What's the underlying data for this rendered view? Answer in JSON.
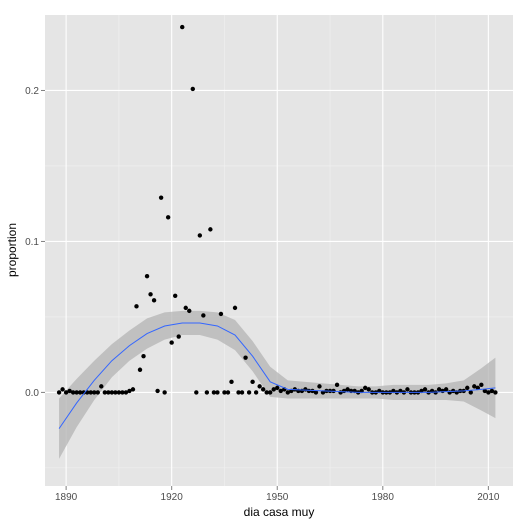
{
  "chart_data": {
    "type": "scatter",
    "title": "",
    "xlabel": "dia casa muy",
    "ylabel": "proportion",
    "xlim": [
      1884,
      2017
    ],
    "ylim": [
      -0.062,
      0.25
    ],
    "x_ticks": [
      1890,
      1920,
      1950,
      1980,
      2010
    ],
    "y_ticks": [
      0.0,
      0.1,
      0.2
    ],
    "y_tick_labels": [
      "0.0",
      "0.1",
      "0.2"
    ],
    "grid": true,
    "legend": "none",
    "colors": {
      "panel": "#e5e5e5",
      "grid_major": "#ffffff",
      "grid_minor": "#f2f2f2",
      "points": "#000000",
      "smooth_line": "#3366ff",
      "ribbon": "#b3b3b3",
      "tick_label": "#4d4d4d"
    },
    "series": [
      {
        "type": "points",
        "x": [
          1888,
          1889,
          1890,
          1891,
          1892,
          1893,
          1894,
          1895,
          1896,
          1897,
          1898,
          1899,
          1900,
          1901,
          1902,
          1903,
          1904,
          1905,
          1906,
          1907,
          1908,
          1909,
          1910,
          1911,
          1912,
          1913,
          1914,
          1915,
          1916,
          1917,
          1918,
          1919,
          1920,
          1921,
          1922,
          1923,
          1924,
          1925,
          1926,
          1927,
          1928,
          1929,
          1930,
          1931,
          1932,
          1933,
          1934,
          1935,
          1936,
          1937,
          1938,
          1939,
          1940,
          1941,
          1942,
          1943,
          1944,
          1945,
          1946,
          1947,
          1948,
          1949,
          1950,
          1951,
          1952,
          1953,
          1954,
          1955,
          1956,
          1957,
          1958,
          1959,
          1960,
          1961,
          1962,
          1963,
          1964,
          1965,
          1966,
          1967,
          1968,
          1969,
          1970,
          1971,
          1972,
          1973,
          1974,
          1975,
          1976,
          1977,
          1978,
          1979,
          1980,
          1981,
          1982,
          1983,
          1984,
          1985,
          1986,
          1987,
          1988,
          1989,
          1990,
          1991,
          1992,
          1993,
          1994,
          1995,
          1996,
          1997,
          1998,
          1999,
          2000,
          2001,
          2002,
          2003,
          2004,
          2005,
          2006,
          2007,
          2008,
          2009,
          2010,
          2011,
          2012
        ],
        "y": [
          0,
          0.002,
          0,
          0.001,
          0,
          0,
          0,
          0,
          0,
          0,
          0,
          0,
          0.004,
          0,
          0,
          0,
          0,
          0,
          0,
          0,
          0.001,
          0.002,
          0.057,
          0.015,
          0.024,
          0.077,
          0.065,
          0.061,
          0.001,
          0.129,
          0,
          0.116,
          0.033,
          0.064,
          0.037,
          0.242,
          0.056,
          0.054,
          0.201,
          0,
          0.104,
          0.051,
          0,
          0.108,
          0,
          0,
          0.052,
          0,
          0,
          0.007,
          0.056,
          0,
          0,
          0.023,
          0,
          0.007,
          0,
          0.004,
          0.002,
          0,
          0,
          0.002,
          0.003,
          0.001,
          0.002,
          0,
          0.001,
          0.002,
          0.001,
          0.001,
          0.002,
          0.001,
          0.001,
          0,
          0.004,
          0,
          0.001,
          0.001,
          0.001,
          0.005,
          0,
          0.001,
          0.002,
          0.001,
          0.001,
          0,
          0.001,
          0.003,
          0.002,
          0,
          0,
          0.001,
          0,
          0,
          0,
          0.001,
          0,
          0.001,
          0,
          0.002,
          0,
          0,
          0,
          0.001,
          0.002,
          0,
          0.001,
          0,
          0.002,
          0.001,
          0.002,
          0,
          0.001,
          0,
          0.001,
          0.001,
          0.003,
          0,
          0.004,
          0.003,
          0.005,
          0.001,
          0,
          0.001,
          0
        ]
      },
      {
        "type": "smooth",
        "x": [
          1888,
          1893,
          1898,
          1903,
          1908,
          1913,
          1918,
          1923,
          1928,
          1933,
          1938,
          1943,
          1948,
          1953,
          1958,
          1963,
          1968,
          1973,
          1978,
          1983,
          1988,
          1993,
          1998,
          2003,
          2008,
          2012
        ],
        "y": [
          -0.024,
          -0.007,
          0.008,
          0.021,
          0.031,
          0.039,
          0.044,
          0.046,
          0.046,
          0.044,
          0.038,
          0.024,
          0.007,
          0.002,
          0.0015,
          0.001,
          0.0005,
          0,
          0,
          0,
          0,
          0,
          0.0005,
          0.001,
          0.002,
          0.003
        ],
        "ymin": [
          -0.044,
          -0.023,
          -0.005,
          0.01,
          0.021,
          0.029,
          0.035,
          0.038,
          0.038,
          0.035,
          0.028,
          0.014,
          -0.003,
          -0.004,
          -0.004,
          -0.004,
          -0.004,
          -0.004,
          -0.004,
          -0.005,
          -0.005,
          -0.005,
          -0.005,
          -0.006,
          -0.012,
          -0.017
        ],
        "ymax": [
          -0.004,
          0.009,
          0.021,
          0.032,
          0.041,
          0.049,
          0.053,
          0.054,
          0.054,
          0.053,
          0.048,
          0.034,
          0.017,
          0.008,
          0.007,
          0.006,
          0.005,
          0.004,
          0.004,
          0.005,
          0.005,
          0.005,
          0.006,
          0.008,
          0.016,
          0.023
        ]
      }
    ]
  }
}
